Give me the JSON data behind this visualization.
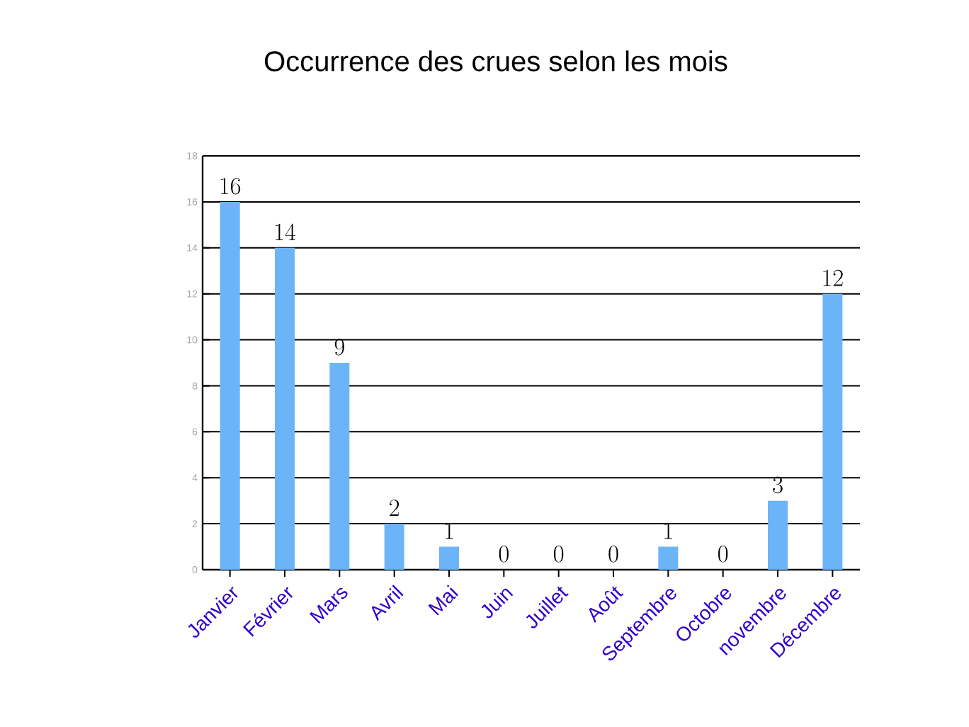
{
  "chart_data": {
    "type": "bar",
    "title": "Occurrence des crues selon les mois",
    "categories": [
      "Janvier",
      "Février",
      "Mars",
      "Avril",
      "Mai",
      "Juin",
      "Juillet",
      "Août",
      "Septembre",
      "Octobre",
      "novembre",
      "Décembre"
    ],
    "values": [
      16,
      14,
      9,
      2,
      1,
      0,
      0,
      0,
      1,
      0,
      3,
      12
    ],
    "color": "#6cb4f8",
    "ylim": [
      0,
      18
    ],
    "yticks": [
      0,
      2,
      4,
      6,
      8,
      10,
      12,
      14,
      16,
      18
    ],
    "grid": "y",
    "data_labels": true
  }
}
